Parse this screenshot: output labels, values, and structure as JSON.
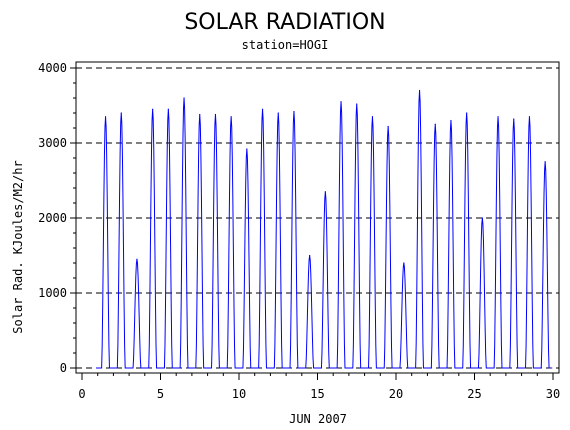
{
  "chart_data": {
    "type": "line",
    "title": "SOLAR RADIATION",
    "subtitle": "station=HOGI",
    "xlabel": "JUN 2007",
    "ylabel": "Solar Rad. KJoules/M2/hr",
    "xlim": [
      0,
      30
    ],
    "ylim": [
      0,
      4000
    ],
    "x_ticks": [
      0,
      5,
      10,
      15,
      20,
      25,
      30
    ],
    "y_ticks": [
      0,
      1000,
      2000,
      3000,
      4000
    ],
    "grid": "horizontal-dashed",
    "series": [
      {
        "color": "#0000ff",
        "daily_peaks": [
          {
            "day": 1,
            "peak": 3350
          },
          {
            "day": 2,
            "peak": 3400
          },
          {
            "day": 3,
            "peak": 1450
          },
          {
            "day": 4,
            "peak": 3450
          },
          {
            "day": 5,
            "peak": 3450
          },
          {
            "day": 6,
            "peak": 3600
          },
          {
            "day": 7,
            "peak": 3380
          },
          {
            "day": 8,
            "peak": 3380
          },
          {
            "day": 9,
            "peak": 3350
          },
          {
            "day": 10,
            "peak": 2920
          },
          {
            "day": 11,
            "peak": 3450
          },
          {
            "day": 12,
            "peak": 3400
          },
          {
            "day": 13,
            "peak": 3420
          },
          {
            "day": 14,
            "peak": 1500
          },
          {
            "day": 15,
            "peak": 2350
          },
          {
            "day": 16,
            "peak": 3550
          },
          {
            "day": 17,
            "peak": 3520
          },
          {
            "day": 18,
            "peak": 3350
          },
          {
            "day": 19,
            "peak": 3220
          },
          {
            "day": 20,
            "peak": 1400
          },
          {
            "day": 21,
            "peak": 3700
          },
          {
            "day": 22,
            "peak": 3250
          },
          {
            "day": 23,
            "peak": 3300
          },
          {
            "day": 24,
            "peak": 3400
          },
          {
            "day": 25,
            "peak": 2000
          },
          {
            "day": 26,
            "peak": 3350
          },
          {
            "day": 27,
            "peak": 3320
          },
          {
            "day": 28,
            "peak": 3350
          },
          {
            "day": 29,
            "peak": 2750
          }
        ]
      }
    ]
  }
}
